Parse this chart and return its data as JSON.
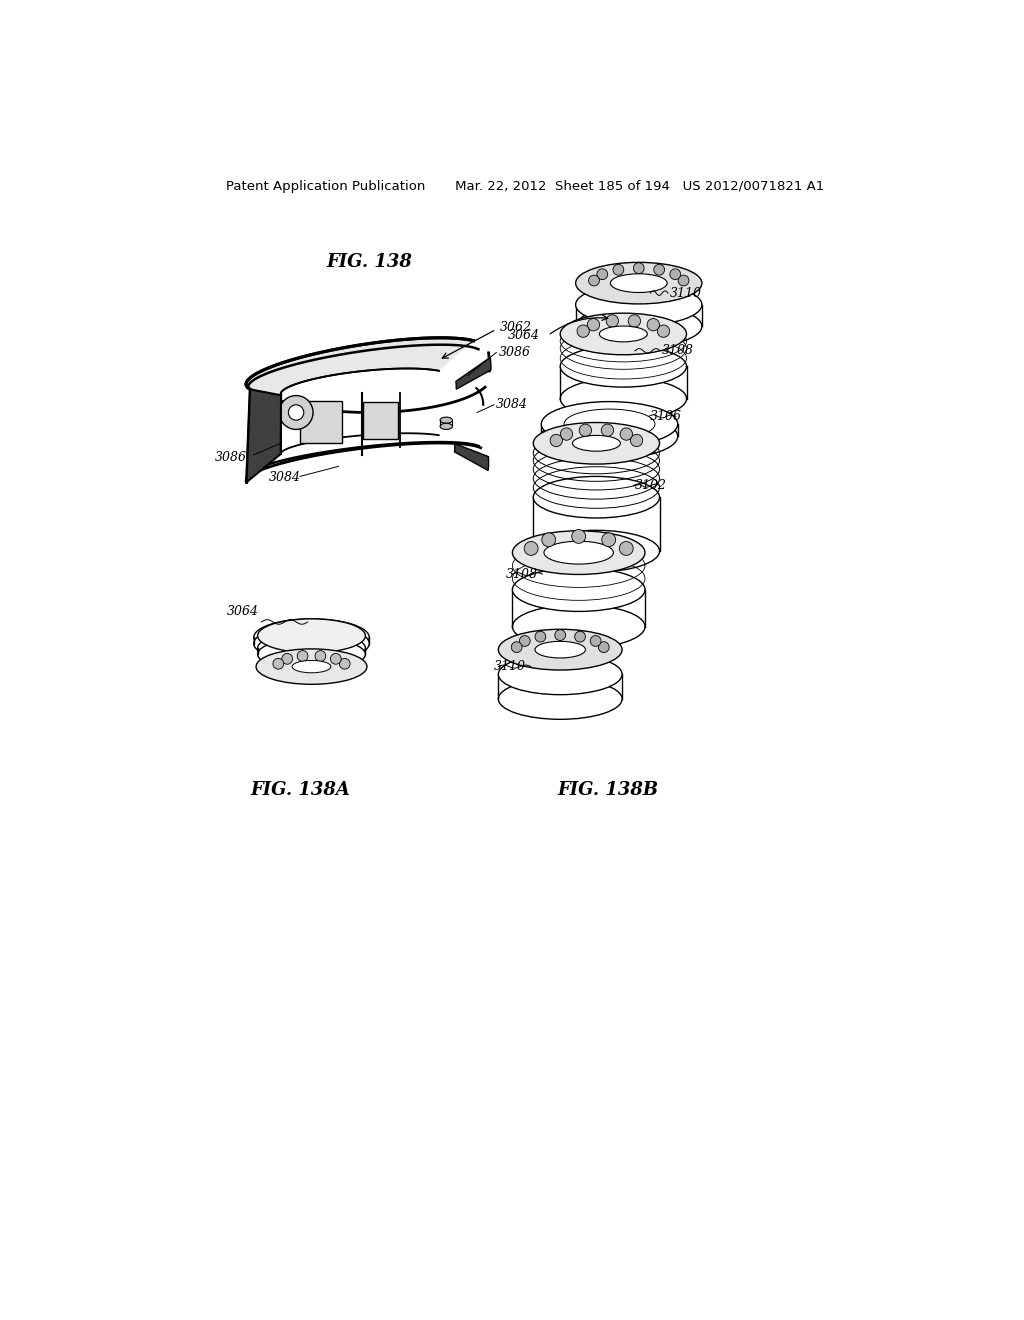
{
  "bg_color": "#ffffff",
  "header_text": "Patent Application Publication  Mar. 22, 2012 Sheet 185 of 194  US 2012/0071821 A1",
  "fig138_title": "FIG. 138",
  "fig138a_title": "FIG. 138A",
  "fig138b_title": "FIG. 138B",
  "label_fontsize": 9,
  "title_fontsize": 13,
  "header_fontsize": 9.5,
  "line_color": "#000000",
  "line_width": 1.0
}
